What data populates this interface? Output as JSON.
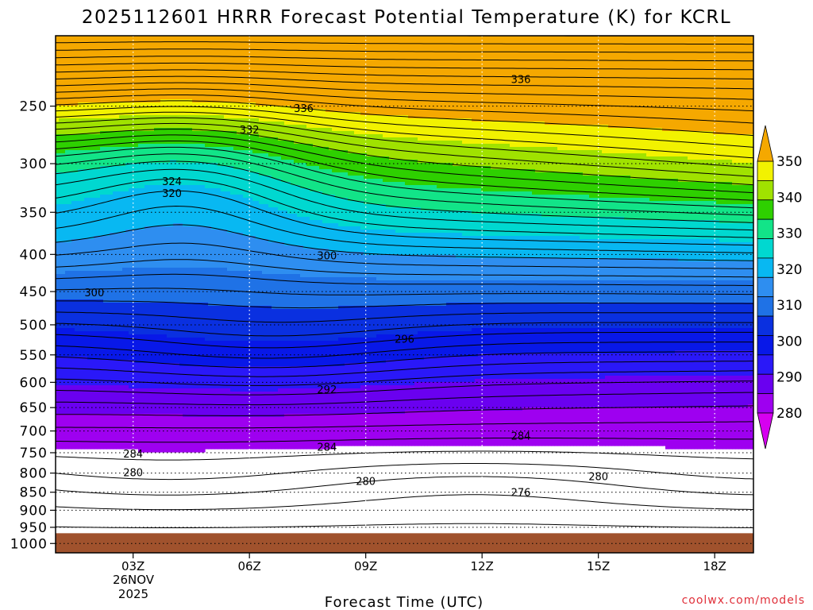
{
  "chart_data": {
    "type": "heatmap",
    "title": "2025112601 HRRR Forecast Potential Temperature (K) for KCRL",
    "xlabel": "Forecast Time (UTC)",
    "ylabel": "",
    "x_ticks": [
      "03Z",
      "06Z",
      "09Z",
      "12Z",
      "15Z",
      "18Z"
    ],
    "x_tick_hours": [
      3,
      6,
      9,
      12,
      15,
      18
    ],
    "x_range_hours": [
      1,
      19
    ],
    "date_label": [
      "26NOV",
      "2025"
    ],
    "y_ticks": [
      250,
      300,
      350,
      400,
      450,
      500,
      550,
      600,
      650,
      700,
      750,
      800,
      850,
      900,
      950,
      1000
    ],
    "y_range_hpa": [
      200,
      1030
    ],
    "y_scale": "log",
    "ground_pressure_hpa": 968,
    "colorbar": {
      "ticks": [
        280,
        290,
        300,
        310,
        320,
        330,
        340,
        350
      ],
      "levels": [
        280,
        285,
        290,
        295,
        300,
        305,
        310,
        315,
        320,
        325,
        330,
        335,
        340,
        345,
        350
      ],
      "colors": [
        "#d600f0",
        "#9e00f0",
        "#6a00f0",
        "#2a18f8",
        "#0818e8",
        "#0a30e0",
        "#1f72e6",
        "#2e8ef0",
        "#08b8f2",
        "#00d8d0",
        "#12e488",
        "#2ed000",
        "#a0e200",
        "#f2f200",
        "#f5a800"
      ],
      "extend": "both"
    },
    "contour_interval": 2,
    "contour_labels": [
      {
        "value": "336",
        "hour": 13.0,
        "p": 230
      },
      {
        "value": "336",
        "hour": 7.4,
        "p": 252
      },
      {
        "value": "332",
        "hour": 6.0,
        "p": 270
      },
      {
        "value": "324",
        "hour": 4.0,
        "p": 318
      },
      {
        "value": "320",
        "hour": 4.0,
        "p": 330
      },
      {
        "value": "300",
        "hour": 8.0,
        "p": 402
      },
      {
        "value": "300",
        "hour": 2.0,
        "p": 452
      },
      {
        "value": "296",
        "hour": 10.0,
        "p": 524
      },
      {
        "value": "292",
        "hour": 8.0,
        "p": 615
      },
      {
        "value": "284",
        "hour": 13.0,
        "p": 712
      },
      {
        "value": "284",
        "hour": 8.0,
        "p": 738
      },
      {
        "value": "284",
        "hour": 3.0,
        "p": 754
      },
      {
        "value": "280",
        "hour": 3.0,
        "p": 800
      },
      {
        "value": "280",
        "hour": 15.0,
        "p": 810
      },
      {
        "value": "280",
        "hour": 9.0,
        "p": 822
      },
      {
        "value": "276",
        "hour": 13.0,
        "p": 852
      }
    ]
  },
  "credit": "coolwx.com/models"
}
